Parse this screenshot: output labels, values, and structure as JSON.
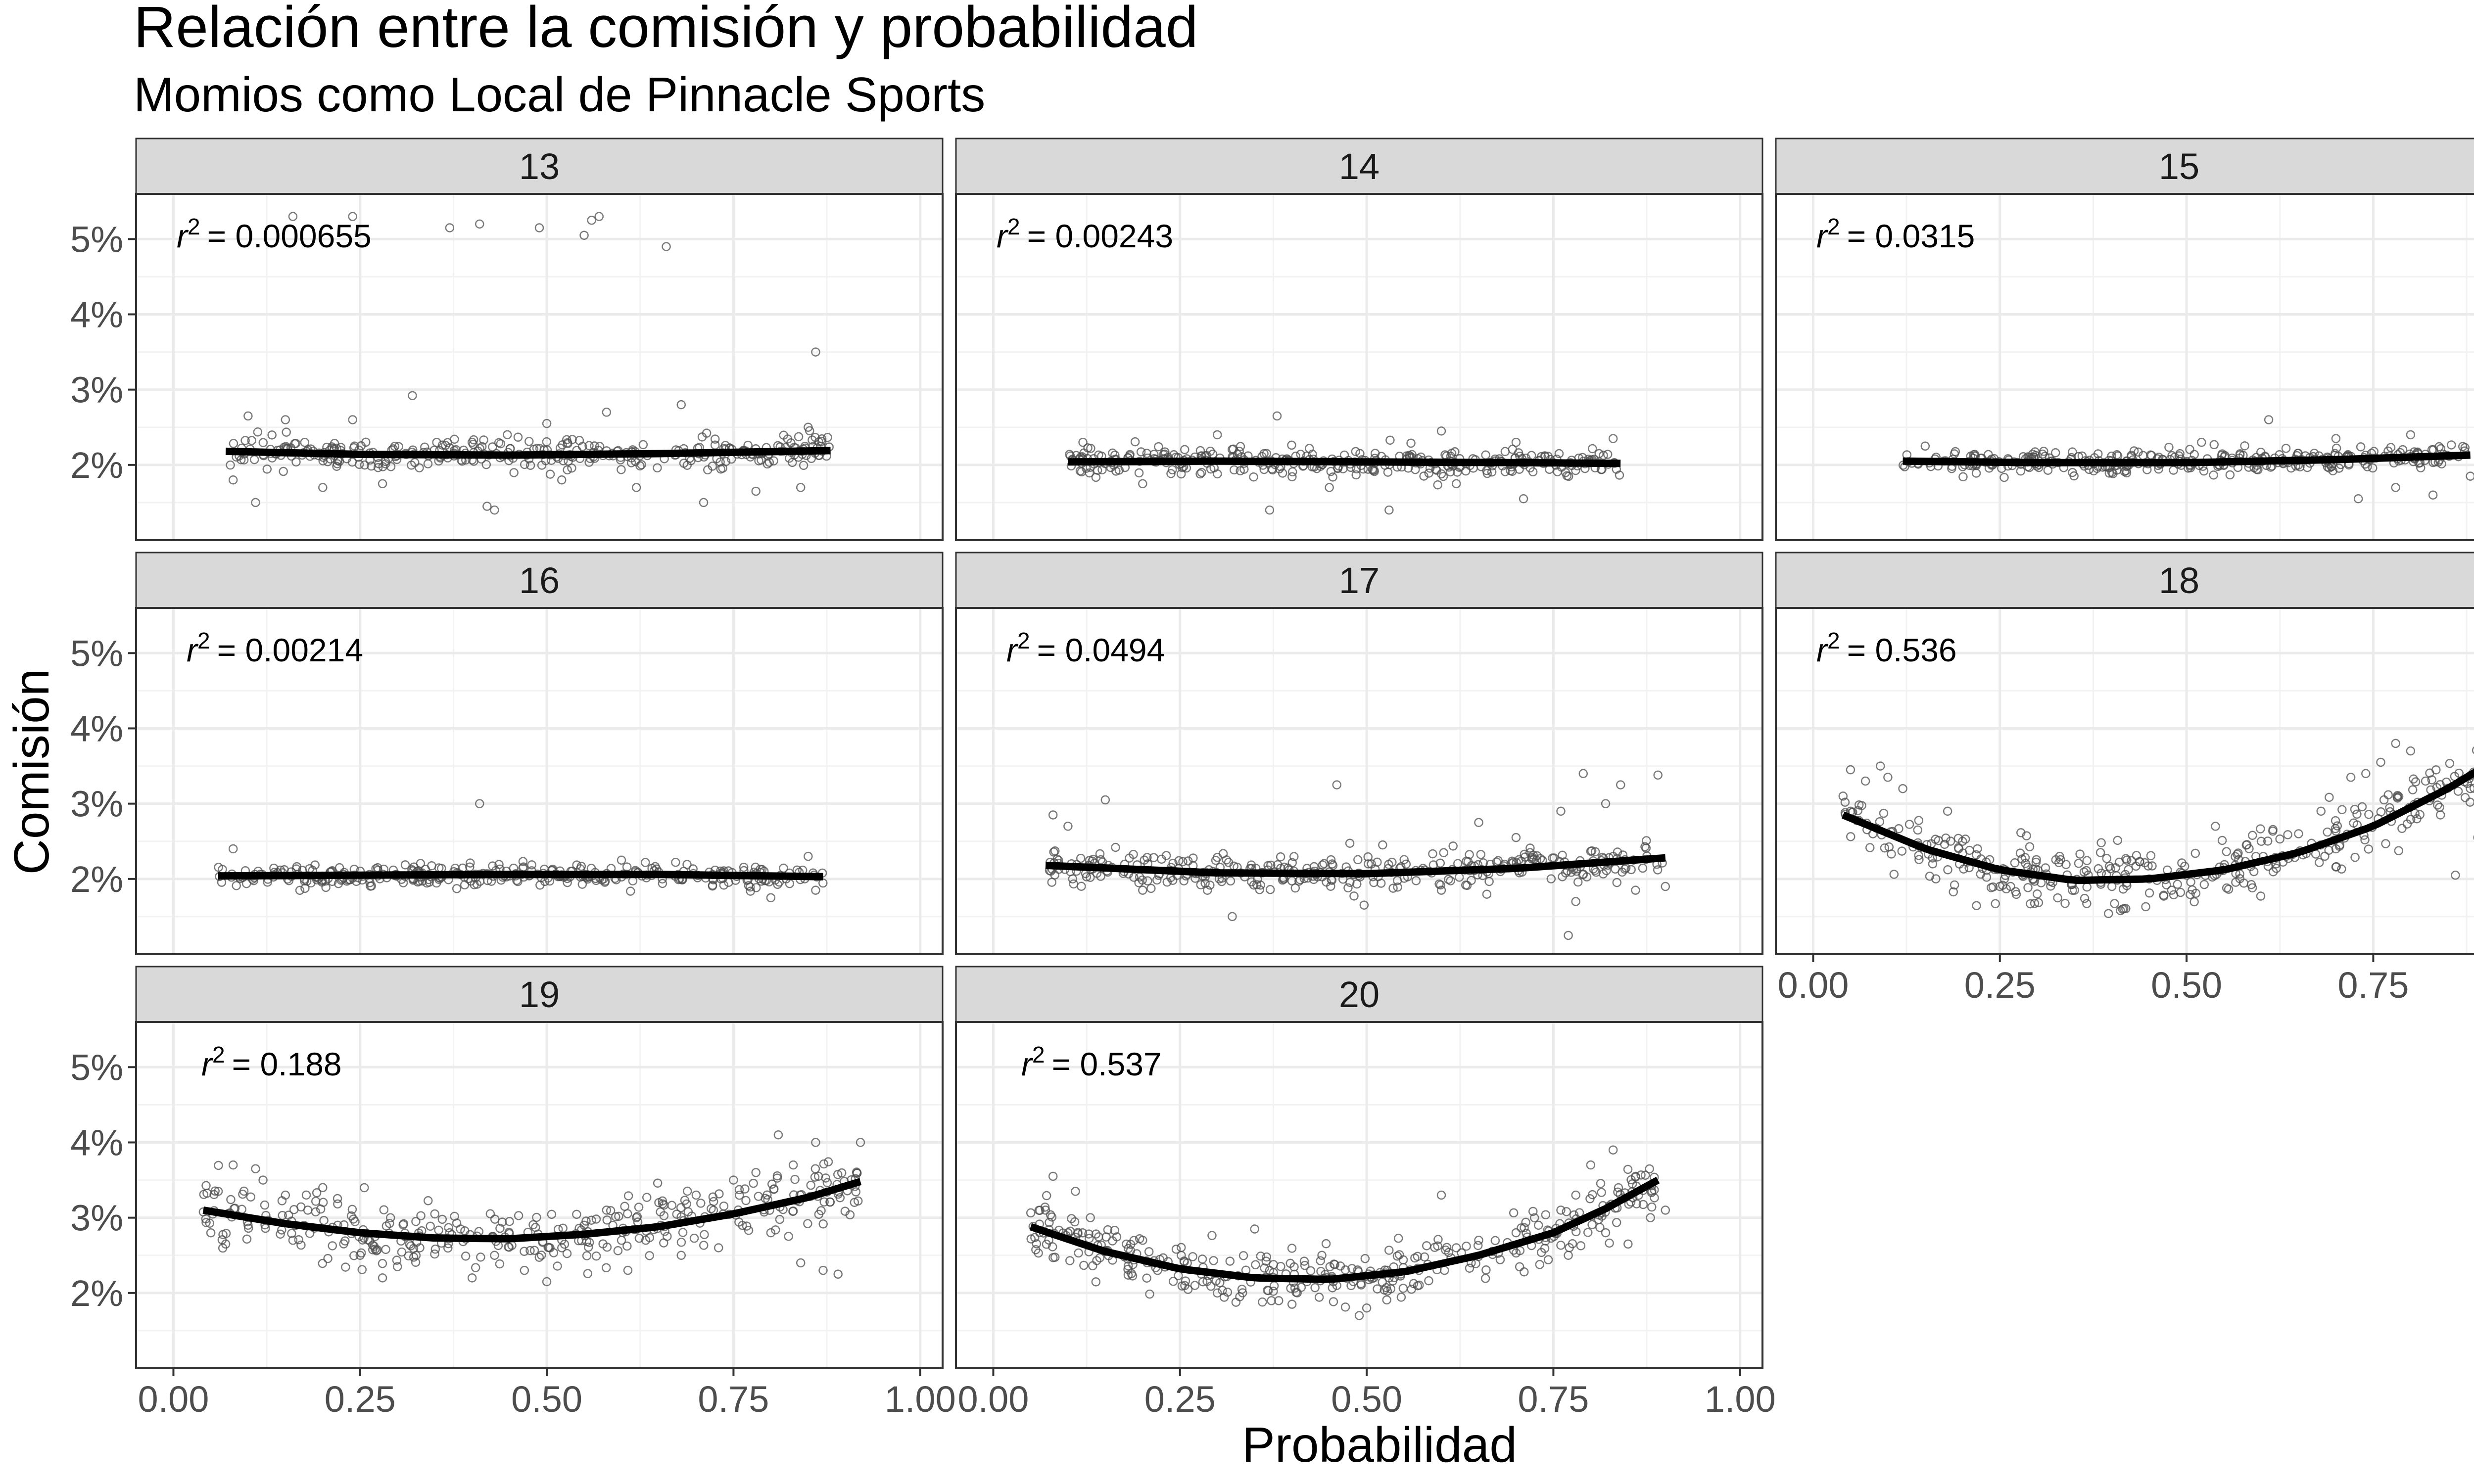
{
  "chart_data": {
    "type": "scatter",
    "title": "Relación entre la comisión y probabilidad",
    "subtitle": "Momios como Local de Pinnacle Sports",
    "xlabel": "Probabilidad",
    "ylabel": "Comisión",
    "xlim": [
      -0.05,
      1.03
    ],
    "ylim": [
      1.0,
      5.6
    ],
    "x_ticks": [
      "0.00",
      "0.25",
      "0.50",
      "0.75",
      "1.00"
    ],
    "x_tick_values": [
      0,
      0.25,
      0.5,
      0.75,
      1.0
    ],
    "y_ticks": [
      "2%",
      "3%",
      "4%",
      "5%"
    ],
    "y_tick_values": [
      2,
      3,
      4,
      5
    ],
    "grid": true,
    "colors": {
      "panel_strip": "#d9d9d9",
      "fit_line": "#000000",
      "points": "#4d4d4d",
      "grid": "#ebebeb",
      "border": "#333333"
    },
    "panels": [
      {
        "facet": "13",
        "r2_prefix": "r",
        "r2_exp": "2",
        "r2_value": "= 0.000655",
        "fit": {
          "x": [
            0.07,
            0.25,
            0.45,
            0.65,
            0.88
          ],
          "y": [
            2.18,
            2.14,
            2.13,
            2.15,
            2.19
          ]
        },
        "points": [
          [
            0.1,
            2.65
          ],
          [
            0.15,
            2.6
          ],
          [
            0.24,
            2.6
          ],
          [
            0.32,
            2.92
          ],
          [
            0.4,
            2.3
          ],
          [
            0.5,
            2.55
          ],
          [
            0.58,
            2.7
          ],
          [
            0.68,
            2.8
          ],
          [
            0.85,
            2.5
          ],
          [
            0.86,
            3.5
          ],
          [
            0.16,
            5.3
          ],
          [
            0.24,
            5.3
          ],
          [
            0.37,
            5.15
          ],
          [
            0.41,
            5.2
          ],
          [
            0.49,
            5.15
          ],
          [
            0.55,
            5.05
          ],
          [
            0.56,
            5.25
          ],
          [
            0.57,
            5.3
          ],
          [
            0.66,
            4.9
          ],
          [
            0.08,
            1.8
          ],
          [
            0.11,
            1.5
          ],
          [
            0.2,
            1.7
          ],
          [
            0.28,
            1.75
          ],
          [
            0.42,
            1.45
          ],
          [
            0.43,
            1.4
          ],
          [
            0.52,
            1.8
          ],
          [
            0.62,
            1.7
          ],
          [
            0.71,
            1.5
          ],
          [
            0.78,
            1.65
          ],
          [
            0.84,
            1.7
          ]
        ]
      },
      {
        "facet": "14",
        "r2_prefix": "r",
        "r2_exp": "2",
        "r2_value": "= 0.00243",
        "fit": {
          "x": [
            0.1,
            0.3,
            0.5,
            0.7,
            0.84
          ],
          "y": [
            2.04,
            2.05,
            2.04,
            2.03,
            2.02
          ]
        },
        "points": [
          [
            0.38,
            2.65
          ],
          [
            0.3,
            2.4
          ],
          [
            0.6,
            2.45
          ],
          [
            0.7,
            2.3
          ],
          [
            0.83,
            2.35
          ],
          [
            0.12,
            2.3
          ],
          [
            0.37,
            1.4
          ],
          [
            0.53,
            1.4
          ],
          [
            0.71,
            1.55
          ],
          [
            0.2,
            1.75
          ],
          [
            0.45,
            1.7
          ],
          [
            0.62,
            1.75
          ]
        ]
      },
      {
        "facet": "15",
        "r2_prefix": "r",
        "r2_exp": "2",
        "r2_value": "= 0.0315",
        "fit": {
          "x": [
            0.12,
            0.3,
            0.5,
            0.7,
            0.88
          ],
          "y": [
            2.05,
            2.03,
            2.03,
            2.07,
            2.13
          ]
        },
        "points": [
          [
            0.61,
            2.6
          ],
          [
            0.8,
            2.4
          ],
          [
            0.88,
            1.85
          ],
          [
            0.78,
            1.7
          ],
          [
            0.73,
            1.55
          ],
          [
            0.83,
            1.6
          ],
          [
            0.52,
            2.3
          ],
          [
            0.7,
            2.35
          ],
          [
            0.15,
            2.25
          ],
          [
            0.4,
            1.9
          ]
        ]
      },
      {
        "facet": "16",
        "r2_prefix": "r",
        "r2_exp": "2",
        "r2_value": "= 0.00214",
        "fit": {
          "x": [
            0.06,
            0.25,
            0.45,
            0.65,
            0.87
          ],
          "y": [
            2.04,
            2.05,
            2.06,
            2.06,
            2.03
          ]
        },
        "points": [
          [
            0.41,
            3.0
          ],
          [
            0.08,
            2.4
          ],
          [
            0.86,
            1.85
          ],
          [
            0.8,
            1.75
          ],
          [
            0.85,
            2.3
          ],
          [
            0.6,
            2.25
          ]
        ]
      },
      {
        "facet": "17",
        "r2_prefix": "r",
        "r2_exp": "2",
        "r2_value": "= 0.0494",
        "fit": {
          "x": [
            0.07,
            0.3,
            0.5,
            0.7,
            0.9
          ],
          "y": [
            2.18,
            2.08,
            2.07,
            2.14,
            2.28
          ]
        },
        "points": [
          [
            0.46,
            3.25
          ],
          [
            0.79,
            3.4
          ],
          [
            0.89,
            3.38
          ],
          [
            0.82,
            3.0
          ],
          [
            0.84,
            3.25
          ],
          [
            0.76,
            2.9
          ],
          [
            0.65,
            2.75
          ],
          [
            0.15,
            3.05
          ],
          [
            0.08,
            2.85
          ],
          [
            0.1,
            2.7
          ],
          [
            0.32,
            1.5
          ],
          [
            0.78,
            1.7
          ],
          [
            0.77,
            1.25
          ],
          [
            0.86,
            1.85
          ],
          [
            0.9,
            1.9
          ],
          [
            0.6,
            1.85
          ],
          [
            0.2,
            1.85
          ],
          [
            0.7,
            2.55
          ]
        ]
      },
      {
        "facet": "18",
        "r2_prefix": "r",
        "r2_exp": "2",
        "r2_value": "= 0.536",
        "fit": {
          "x": [
            0.04,
            0.15,
            0.25,
            0.35,
            0.45,
            0.55,
            0.65,
            0.75,
            0.85,
            0.9
          ],
          "y": [
            2.85,
            2.4,
            2.12,
            1.98,
            2.0,
            2.12,
            2.35,
            2.7,
            3.2,
            3.5
          ]
        },
        "points": [
          [
            0.05,
            3.45
          ],
          [
            0.07,
            3.3
          ],
          [
            0.1,
            3.35
          ],
          [
            0.12,
            3.2
          ],
          [
            0.09,
            3.5
          ],
          [
            0.18,
            2.9
          ],
          [
            0.08,
            2.6
          ],
          [
            0.14,
            2.65
          ],
          [
            0.05,
            2.9
          ],
          [
            0.04,
            3.1
          ],
          [
            0.78,
            3.8
          ],
          [
            0.8,
            3.7
          ],
          [
            0.76,
            3.55
          ],
          [
            0.72,
            3.35
          ],
          [
            0.74,
            3.4
          ],
          [
            0.82,
            3.3
          ],
          [
            0.88,
            3.2
          ],
          [
            0.89,
            2.55
          ],
          [
            0.84,
            2.85
          ],
          [
            0.86,
            2.05
          ],
          [
            0.68,
            2.9
          ],
          [
            0.65,
            2.6
          ],
          [
            0.6,
            2.5
          ],
          [
            0.58,
            2.45
          ],
          [
            0.2,
            2.5
          ],
          [
            0.22,
            2.4
          ],
          [
            0.25,
            1.9
          ],
          [
            0.3,
            1.8
          ],
          [
            0.35,
            1.85
          ],
          [
            0.4,
            1.9
          ],
          [
            0.45,
            2.0
          ],
          [
            0.5,
            2.05
          ],
          [
            0.55,
            2.15
          ],
          [
            0.62,
            2.2
          ],
          [
            0.7,
            2.4
          ],
          [
            0.16,
            2.2
          ],
          [
            0.28,
            2.05
          ],
          [
            0.33,
            2.3
          ],
          [
            0.42,
            2.25
          ],
          [
            0.48,
            1.85
          ]
        ]
      },
      {
        "facet": "19",
        "r2_prefix": "r",
        "r2_exp": "2",
        "r2_value": "= 0.188",
        "fit": {
          "x": [
            0.04,
            0.15,
            0.25,
            0.35,
            0.45,
            0.55,
            0.65,
            0.75,
            0.85,
            0.92
          ],
          "y": [
            3.1,
            2.92,
            2.8,
            2.73,
            2.72,
            2.78,
            2.88,
            3.05,
            3.27,
            3.48
          ]
        },
        "points": [
          [
            0.08,
            3.7
          ],
          [
            0.11,
            3.65
          ],
          [
            0.06,
            3.35
          ],
          [
            0.12,
            3.5
          ],
          [
            0.15,
            3.3
          ],
          [
            0.2,
            3.4
          ],
          [
            0.18,
            3.1
          ],
          [
            0.22,
            2.9
          ],
          [
            0.25,
            2.5
          ],
          [
            0.28,
            2.2
          ],
          [
            0.3,
            2.35
          ],
          [
            0.33,
            2.6
          ],
          [
            0.37,
            2.8
          ],
          [
            0.4,
            2.2
          ],
          [
            0.43,
            2.5
          ],
          [
            0.47,
            2.3
          ],
          [
            0.5,
            2.15
          ],
          [
            0.52,
            2.6
          ],
          [
            0.55,
            2.9
          ],
          [
            0.58,
            3.1
          ],
          [
            0.62,
            3.0
          ],
          [
            0.65,
            3.2
          ],
          [
            0.7,
            3.3
          ],
          [
            0.75,
            3.5
          ],
          [
            0.78,
            3.6
          ],
          [
            0.81,
            4.1
          ],
          [
            0.86,
            4.0
          ],
          [
            0.92,
            4.0
          ],
          [
            0.83,
            3.7
          ],
          [
            0.87,
            2.3
          ],
          [
            0.84,
            2.4
          ],
          [
            0.89,
            2.25
          ],
          [
            0.8,
            2.8
          ],
          [
            0.73,
            2.6
          ],
          [
            0.68,
            2.5
          ],
          [
            0.6,
            2.7
          ],
          [
            0.45,
            2.95
          ],
          [
            0.35,
            3.05
          ],
          [
            0.27,
            2.75
          ],
          [
            0.1,
            2.9
          ],
          [
            0.07,
            2.65
          ],
          [
            0.16,
            2.7
          ]
        ]
      },
      {
        "facet": "20",
        "r2_prefix": "r",
        "r2_exp": "2",
        "r2_value": "= 0.537",
        "fit": {
          "x": [
            0.05,
            0.15,
            0.25,
            0.35,
            0.45,
            0.55,
            0.65,
            0.75,
            0.82,
            0.89
          ],
          "y": [
            2.88,
            2.55,
            2.32,
            2.2,
            2.18,
            2.28,
            2.5,
            2.8,
            3.12,
            3.5
          ]
        },
        "points": [
          [
            0.08,
            3.55
          ],
          [
            0.11,
            3.35
          ],
          [
            0.07,
            3.1
          ],
          [
            0.13,
            3.0
          ],
          [
            0.1,
            2.8
          ],
          [
            0.15,
            2.55
          ],
          [
            0.18,
            2.45
          ],
          [
            0.22,
            2.3
          ],
          [
            0.27,
            2.1
          ],
          [
            0.3,
            2.0
          ],
          [
            0.33,
            1.95
          ],
          [
            0.37,
            2.3
          ],
          [
            0.4,
            1.85
          ],
          [
            0.42,
            2.15
          ],
          [
            0.46,
            2.1
          ],
          [
            0.5,
            1.8
          ],
          [
            0.49,
            1.7
          ],
          [
            0.53,
            2.2
          ],
          [
            0.57,
            2.3
          ],
          [
            0.62,
            2.6
          ],
          [
            0.65,
            2.7
          ],
          [
            0.7,
            2.8
          ],
          [
            0.73,
            2.9
          ],
          [
            0.76,
            3.1
          ],
          [
            0.78,
            3.3
          ],
          [
            0.8,
            3.7
          ],
          [
            0.83,
            3.9
          ],
          [
            0.86,
            3.55
          ],
          [
            0.88,
            3.0
          ],
          [
            0.9,
            3.1
          ],
          [
            0.85,
            2.65
          ],
          [
            0.82,
            2.8
          ],
          [
            0.77,
            2.5
          ],
          [
            0.6,
            3.3
          ],
          [
            0.35,
            2.85
          ],
          [
            0.28,
            2.45
          ],
          [
            0.2,
            2.7
          ],
          [
            0.44,
            2.5
          ],
          [
            0.56,
            2.05
          ],
          [
            0.64,
            2.4
          ]
        ]
      }
    ]
  }
}
